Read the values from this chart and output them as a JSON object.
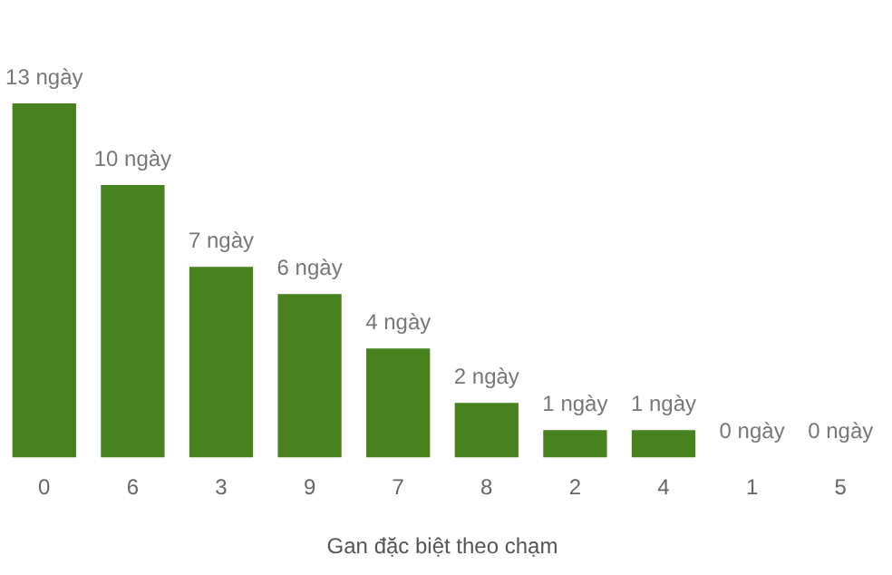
{
  "chart_data": {
    "type": "bar",
    "xlabel": "Gan đặc biệt theo chạm",
    "categories": [
      "0",
      "6",
      "3",
      "9",
      "7",
      "8",
      "2",
      "4",
      "1",
      "5"
    ],
    "values": [
      13,
      10,
      7,
      6,
      4,
      2,
      1,
      1,
      0,
      0
    ],
    "value_labels": [
      "13 ngày",
      "10 ngày",
      "7 ngày",
      "6 ngày",
      "4 ngày",
      "2 ngày",
      "1 ngày",
      "1 ngày",
      "0 ngày",
      "0 ngày"
    ],
    "color": "#47821f",
    "grid": false,
    "legend": false,
    "tick_labels": "x"
  }
}
